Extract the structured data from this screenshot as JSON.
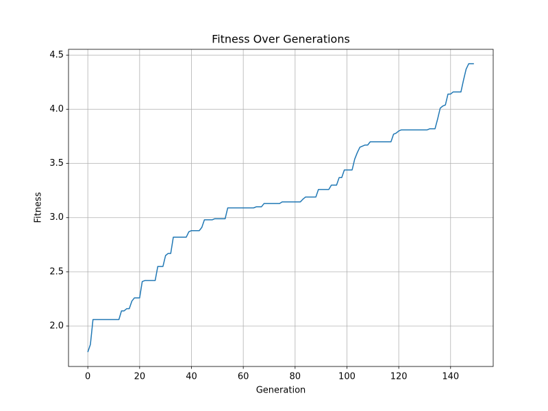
{
  "chart_data": {
    "type": "line",
    "title": "Fitness Over Generations",
    "x_label": "Generation",
    "y_label": "Fitness",
    "grid": true,
    "xlim": [
      -7.45,
      156.45
    ],
    "ylim": [
      1.627,
      4.553
    ],
    "xticks": [
      0,
      20,
      40,
      60,
      80,
      100,
      120,
      140
    ],
    "yticks": [
      {
        "value": 2,
        "label": "2.0"
      },
      2.5,
      {
        "value": 3,
        "label": "3.0"
      },
      3.5,
      {
        "value": 4,
        "label": "4.0"
      },
      4.5
    ],
    "x": [
      0,
      1,
      2,
      3,
      4,
      5,
      6,
      7,
      8,
      9,
      10,
      11,
      12,
      13,
      14,
      15,
      16,
      17,
      18,
      19,
      20,
      21,
      22,
      23,
      24,
      25,
      26,
      27,
      28,
      29,
      30,
      31,
      32,
      33,
      34,
      35,
      36,
      37,
      38,
      39,
      40,
      41,
      42,
      43,
      44,
      45,
      46,
      47,
      48,
      49,
      50,
      51,
      52,
      53,
      54,
      55,
      56,
      57,
      58,
      59,
      60,
      61,
      62,
      63,
      64,
      65,
      66,
      67,
      68,
      69,
      70,
      71,
      72,
      73,
      74,
      75,
      76,
      77,
      78,
      79,
      80,
      81,
      82,
      83,
      84,
      85,
      86,
      87,
      88,
      89,
      90,
      91,
      92,
      93,
      94,
      95,
      96,
      97,
      98,
      99,
      100,
      101,
      102,
      103,
      104,
      105,
      106,
      107,
      108,
      109,
      110,
      111,
      112,
      113,
      114,
      115,
      116,
      117,
      118,
      119,
      120,
      121,
      122,
      123,
      124,
      125,
      126,
      127,
      128,
      129,
      130,
      131,
      132,
      133,
      134,
      135,
      136,
      137,
      138,
      139,
      140,
      141,
      142,
      143,
      144,
      145,
      146,
      147,
      148,
      149
    ],
    "series": [
      {
        "name": "Fitness",
        "color": "#1f77b4",
        "values": [
          1.76,
          1.83,
          2.06,
          2.06,
          2.06,
          2.06,
          2.06,
          2.06,
          2.06,
          2.06,
          2.06,
          2.06,
          2.06,
          2.14,
          2.14,
          2.16,
          2.16,
          2.23,
          2.26,
          2.26,
          2.26,
          2.41,
          2.42,
          2.42,
          2.42,
          2.42,
          2.42,
          2.55,
          2.55,
          2.55,
          2.65,
          2.67,
          2.67,
          2.82,
          2.82,
          2.82,
          2.82,
          2.82,
          2.82,
          2.87,
          2.88,
          2.88,
          2.88,
          2.88,
          2.91,
          2.98,
          2.98,
          2.98,
          2.98,
          2.99,
          2.99,
          2.99,
          2.99,
          2.99,
          3.09,
          3.09,
          3.09,
          3.09,
          3.09,
          3.09,
          3.09,
          3.09,
          3.09,
          3.09,
          3.09,
          3.1,
          3.1,
          3.1,
          3.13,
          3.13,
          3.13,
          3.13,
          3.13,
          3.13,
          3.13,
          3.145,
          3.145,
          3.145,
          3.145,
          3.145,
          3.145,
          3.145,
          3.145,
          3.17,
          3.19,
          3.19,
          3.19,
          3.19,
          3.19,
          3.26,
          3.26,
          3.26,
          3.26,
          3.26,
          3.3,
          3.3,
          3.3,
          3.37,
          3.37,
          3.44,
          3.44,
          3.44,
          3.44,
          3.54,
          3.6,
          3.65,
          3.66,
          3.67,
          3.67,
          3.7,
          3.7,
          3.7,
          3.7,
          3.7,
          3.7,
          3.7,
          3.7,
          3.7,
          3.77,
          3.78,
          3.8,
          3.81,
          3.81,
          3.81,
          3.81,
          3.81,
          3.81,
          3.81,
          3.81,
          3.81,
          3.81,
          3.81,
          3.82,
          3.82,
          3.82,
          3.91,
          4.01,
          4.03,
          4.04,
          4.14,
          4.14,
          4.16,
          4.16,
          4.16,
          4.16,
          4.27,
          4.37,
          4.42,
          4.42,
          4.42
        ]
      }
    ]
  }
}
